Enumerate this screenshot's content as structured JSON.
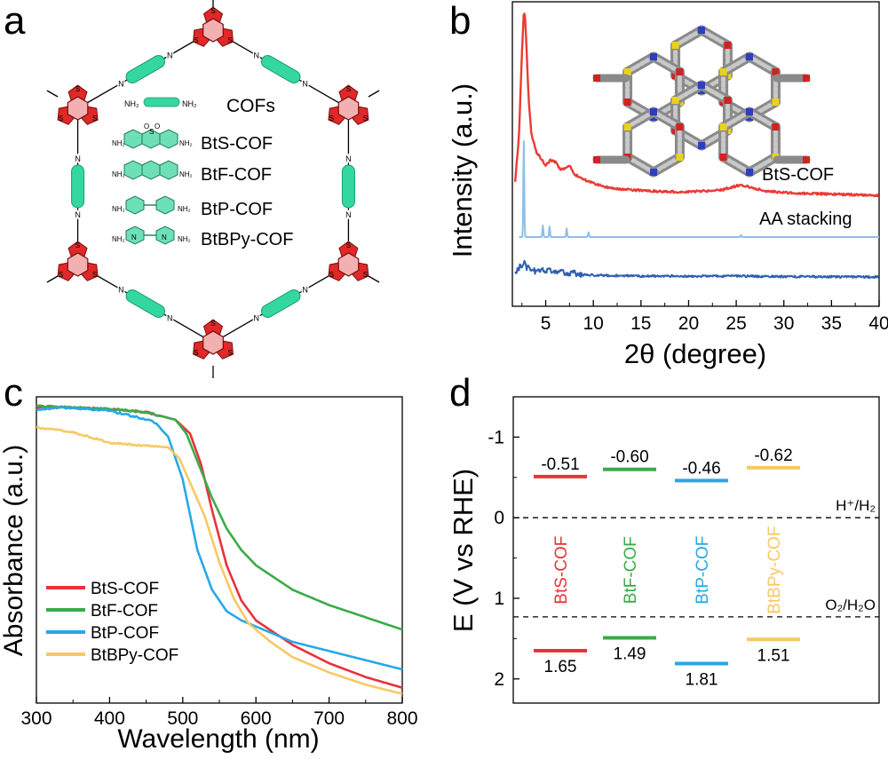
{
  "panels": {
    "a": {
      "label": "a",
      "center_label": "COFs",
      "entries": [
        "BtS-COF",
        "BtF-COF",
        "BtP-COF",
        "BtBPy-COF"
      ],
      "linker_end": "NH₂",
      "imine_atom": "N",
      "thiophene_atom": "S",
      "sulfonyl_atom": "O",
      "colors": {
        "core": "#e02828",
        "linker": "#35d7a0",
        "bond": "#000000"
      }
    },
    "b": {
      "label": "b",
      "series_labels": [
        "BtS-COF",
        "AA stacking"
      ],
      "colors": {
        "BtS-COF": "#ec3a35",
        "AA stacking": "#8cc0ec",
        "bottom": "#2d5fae"
      }
    },
    "c": {
      "label": "c"
    },
    "d": {
      "label": "d"
    }
  },
  "chart_data": [
    {
      "type": "line",
      "panel": "b",
      "xlabel": "2θ (degree)",
      "ylabel": "Intensity (a.u.)",
      "xlim": [
        1.5,
        40
      ],
      "xticks": [
        5,
        10,
        15,
        20,
        25,
        30,
        35,
        40
      ],
      "y_ticks": "none",
      "grid": false,
      "series": [
        {
          "name": "BtS-COF",
          "color": "#ec3a35",
          "offset": 0.53,
          "x": [
            1.8,
            2.2,
            2.5,
            2.7,
            2.85,
            3.0,
            3.2,
            3.5,
            4.0,
            4.5,
            5.0,
            5.5,
            6.0,
            6.5,
            7.0,
            7.5,
            8.0,
            9.0,
            10.0,
            11.0,
            12.0,
            14.0,
            16.0,
            18.0,
            20.0,
            22.0,
            23.5,
            24.5,
            25.5,
            26.5,
            28.0,
            30.0,
            33.0,
            36.0,
            40.0
          ],
          "y": [
            0.08,
            0.35,
            0.8,
            1.05,
            1.0,
            0.82,
            0.55,
            0.35,
            0.25,
            0.21,
            0.17,
            0.2,
            0.19,
            0.15,
            0.15,
            0.17,
            0.12,
            0.09,
            0.07,
            0.05,
            0.04,
            0.03,
            0.025,
            0.02,
            0.02,
            0.025,
            0.03,
            0.045,
            0.06,
            0.045,
            0.025,
            0.015,
            0.01,
            0.005,
            0.0
          ]
        },
        {
          "name": "AA stacking",
          "color": "#8cc0ec",
          "offset": 0.0,
          "peaks": [
            {
              "x": 2.7,
              "h": 1.0
            },
            {
              "x": 4.7,
              "h": 0.12
            },
            {
              "x": 5.4,
              "h": 0.11
            },
            {
              "x": 7.2,
              "h": 0.09
            },
            {
              "x": 9.5,
              "h": 0.05
            },
            {
              "x": 25.5,
              "h": 0.02
            }
          ]
        },
        {
          "name": "",
          "color": "#2d5fae",
          "offset": -0.45,
          "x": [
            1.8,
            2.3,
            2.7,
            3.0,
            3.5,
            4.0,
            5.0,
            6.0,
            7.0,
            8.0,
            10.0,
            15.0,
            20.0,
            25.0,
            30.0,
            40.0
          ],
          "y": [
            0.02,
            0.06,
            0.08,
            0.05,
            0.045,
            0.03,
            0.04,
            0.035,
            0.025,
            0.02,
            0.01,
            0.005,
            0.004,
            0.005,
            0.002,
            0.0
          ]
        }
      ]
    },
    {
      "type": "line",
      "panel": "c",
      "xlabel": "Wavelength (nm)",
      "ylabel": "Absorbance (a.u.)",
      "xlim": [
        300,
        800
      ],
      "ylim": [
        0,
        1.0
      ],
      "xticks": [
        300,
        400,
        500,
        600,
        700,
        800
      ],
      "y_ticks": "none",
      "grid": false,
      "legend": "bottom-left",
      "series": [
        {
          "name": "BtS-COF",
          "color": "#e8323a",
          "x": [
            300,
            350,
            400,
            450,
            490,
            510,
            525,
            540,
            560,
            580,
            600,
            650,
            700,
            750,
            800
          ],
          "y": [
            0.965,
            0.965,
            0.96,
            0.95,
            0.925,
            0.88,
            0.78,
            0.63,
            0.45,
            0.335,
            0.27,
            0.19,
            0.13,
            0.085,
            0.05
          ]
        },
        {
          "name": "BtF-COF",
          "color": "#3bab48",
          "x": [
            300,
            350,
            400,
            450,
            490,
            505,
            520,
            540,
            560,
            580,
            600,
            650,
            700,
            750,
            800
          ],
          "y": [
            0.97,
            0.965,
            0.96,
            0.95,
            0.925,
            0.88,
            0.79,
            0.67,
            0.57,
            0.5,
            0.45,
            0.37,
            0.32,
            0.28,
            0.24
          ]
        },
        {
          "name": "BtP-COF",
          "color": "#29a7e8",
          "x": [
            300,
            330,
            400,
            460,
            480,
            500,
            520,
            540,
            560,
            580,
            600,
            650,
            700,
            750,
            800
          ],
          "y": [
            0.955,
            0.965,
            0.955,
            0.92,
            0.87,
            0.73,
            0.5,
            0.37,
            0.3,
            0.27,
            0.25,
            0.2,
            0.17,
            0.14,
            0.11
          ]
        },
        {
          "name": "BtBPy-COF",
          "color": "#f8c864",
          "x": [
            300,
            350,
            400,
            450,
            480,
            495,
            510,
            530,
            550,
            570,
            590,
            620,
            650,
            700,
            750,
            800
          ],
          "y": [
            0.9,
            0.885,
            0.85,
            0.84,
            0.835,
            0.8,
            0.72,
            0.61,
            0.46,
            0.34,
            0.26,
            0.2,
            0.15,
            0.1,
            0.06,
            0.03
          ]
        }
      ]
    },
    {
      "type": "bar",
      "panel": "d",
      "ylabel": "E (V vs RHE)",
      "ylim": [
        -1.5,
        2.3
      ],
      "y_inverted": true,
      "yticks": [
        "-1",
        "0",
        "1",
        "2"
      ],
      "yticks_value": [
        -1,
        0,
        1,
        2
      ],
      "reference_lines": [
        {
          "label": "H⁺/H₂",
          "value": 0.0
        },
        {
          "label": "O₂/H₂O",
          "value": 1.23
        }
      ],
      "categories": [
        "BtS-COF",
        "BtF-COF",
        "BtP-COF",
        "BtBPy-COF"
      ],
      "colors": [
        "#e8323a",
        "#3bab48",
        "#29a7e8",
        "#f8c864"
      ],
      "cb": [
        -0.51,
        -0.6,
        -0.46,
        -0.62
      ],
      "vb": [
        1.65,
        1.49,
        1.81,
        1.51
      ],
      "cb_labels": [
        "-0.51",
        "-0.60",
        "-0.46",
        "-0.62"
      ],
      "vb_labels": [
        "1.65",
        "1.49",
        "1.81",
        "1.51"
      ]
    }
  ]
}
